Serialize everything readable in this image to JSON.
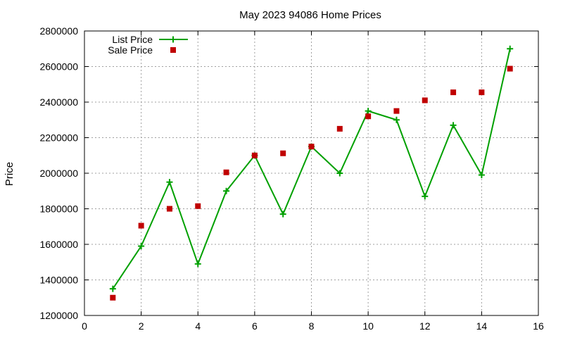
{
  "chart_data": {
    "type": "line",
    "title": "May 2023 94086 Home Prices",
    "xlabel": "",
    "ylabel": "Price",
    "xlim": [
      0,
      16
    ],
    "ylim": [
      1200000,
      2800000
    ],
    "xticks": [
      0,
      2,
      4,
      6,
      8,
      10,
      12,
      14,
      16
    ],
    "yticks": [
      1200000,
      1400000,
      1600000,
      1800000,
      2000000,
      2200000,
      2400000,
      2600000,
      2800000
    ],
    "grid": true,
    "legend_position": "top-left",
    "series": [
      {
        "name": "List Price",
        "style": "line+cross",
        "color": "#00a000",
        "x": [
          1,
          2,
          3,
          4,
          5,
          6,
          7,
          8,
          9,
          10,
          11,
          12,
          13,
          14,
          15
        ],
        "y": [
          1350000,
          1590000,
          1950000,
          1490000,
          1900000,
          2100000,
          1770000,
          2150000,
          2000000,
          2350000,
          2300000,
          1870000,
          2270000,
          1990000,
          2700000
        ]
      },
      {
        "name": "Sale Price",
        "style": "square-points",
        "color": "#c00000",
        "x": [
          1,
          2,
          3,
          4,
          5,
          6,
          7,
          8,
          9,
          10,
          11,
          12,
          13,
          14,
          15
        ],
        "y": [
          1300000,
          1705000,
          1800000,
          1815000,
          2005000,
          2100000,
          2112000,
          2150000,
          2250000,
          2320000,
          2350000,
          2410000,
          2455000,
          2455000,
          2588000
        ]
      }
    ]
  }
}
